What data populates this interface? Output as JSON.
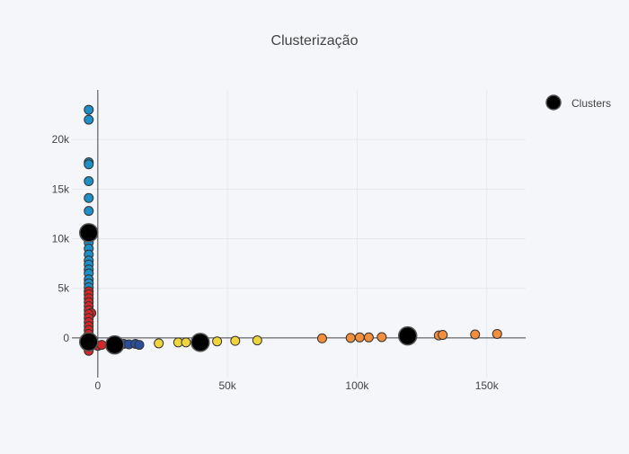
{
  "chart_data": {
    "type": "scatter",
    "title": "Clusterização",
    "xlabel": "",
    "ylabel": "",
    "xlim": [
      -10000,
      165000
    ],
    "ylim": [
      -4000,
      25000
    ],
    "x_ticks": [
      0,
      50000,
      100000,
      150000
    ],
    "x_tick_labels": [
      "0",
      "50k",
      "100k",
      "150k"
    ],
    "y_ticks": [
      0,
      5000,
      10000,
      15000,
      20000
    ],
    "y_tick_labels": [
      "0",
      "5k",
      "10k",
      "15k",
      "20k"
    ],
    "grid": true,
    "legend": {
      "position": "top-right",
      "entries": [
        "Clusters"
      ]
    },
    "series": [
      {
        "color": "#1f8fc6",
        "points": [
          [
            -3500,
            23000
          ],
          [
            -3500,
            22000
          ],
          [
            -3500,
            17700
          ],
          [
            -3500,
            17500
          ],
          [
            -3500,
            15800
          ],
          [
            -3500,
            14100
          ],
          [
            -3500,
            12800
          ],
          [
            -3500,
            11000
          ],
          [
            -3500,
            10200
          ],
          [
            -3500,
            9600
          ],
          [
            -3500,
            9000
          ],
          [
            -3500,
            8400
          ],
          [
            -3500,
            7800
          ],
          [
            -3500,
            7400
          ],
          [
            -3500,
            6900
          ],
          [
            -3500,
            6500
          ],
          [
            -3500,
            5900
          ],
          [
            -3500,
            5500
          ],
          [
            -3500,
            5100
          ]
        ]
      },
      {
        "color": "#d62728",
        "points": [
          [
            -3500,
            4700
          ],
          [
            -3500,
            4400
          ],
          [
            -3500,
            4000
          ],
          [
            -3500,
            3600
          ],
          [
            -3500,
            3200
          ],
          [
            -3500,
            2800
          ],
          [
            -2500,
            2500
          ],
          [
            -3500,
            2400
          ],
          [
            -3500,
            2000
          ],
          [
            -3500,
            1600
          ],
          [
            -3500,
            1200
          ],
          [
            -3500,
            800
          ],
          [
            -3500,
            400
          ],
          [
            -3500,
            0
          ],
          [
            -3500,
            -300
          ],
          [
            -3500,
            -600
          ],
          [
            -3500,
            -1000
          ],
          [
            -3500,
            -1300
          ],
          [
            0,
            -800
          ],
          [
            1500,
            -700
          ]
        ]
      },
      {
        "color": "#2b4e9c",
        "points": [
          [
            10000,
            -600
          ],
          [
            12000,
            -650
          ],
          [
            14500,
            -600
          ],
          [
            16000,
            -700
          ]
        ]
      },
      {
        "color": "#f0d43c",
        "points": [
          [
            23500,
            -550
          ],
          [
            31000,
            -450
          ],
          [
            34000,
            -450
          ],
          [
            46000,
            -350
          ],
          [
            53000,
            -300
          ],
          [
            61500,
            -250
          ]
        ]
      },
      {
        "color": "#f28e3c",
        "points": [
          [
            86500,
            -50
          ],
          [
            97500,
            0
          ],
          [
            101000,
            50
          ],
          [
            104500,
            50
          ],
          [
            109500,
            80
          ],
          [
            131500,
            250
          ],
          [
            133000,
            300
          ],
          [
            145500,
            350
          ],
          [
            154000,
            400
          ]
        ]
      }
    ],
    "centroids": {
      "name": "Clusters",
      "color": "#000000",
      "points": [
        [
          -3500,
          10600
        ],
        [
          -3500,
          -400
        ],
        [
          6500,
          -700
        ],
        [
          39500,
          -450
        ],
        [
          119500,
          200
        ]
      ]
    }
  }
}
